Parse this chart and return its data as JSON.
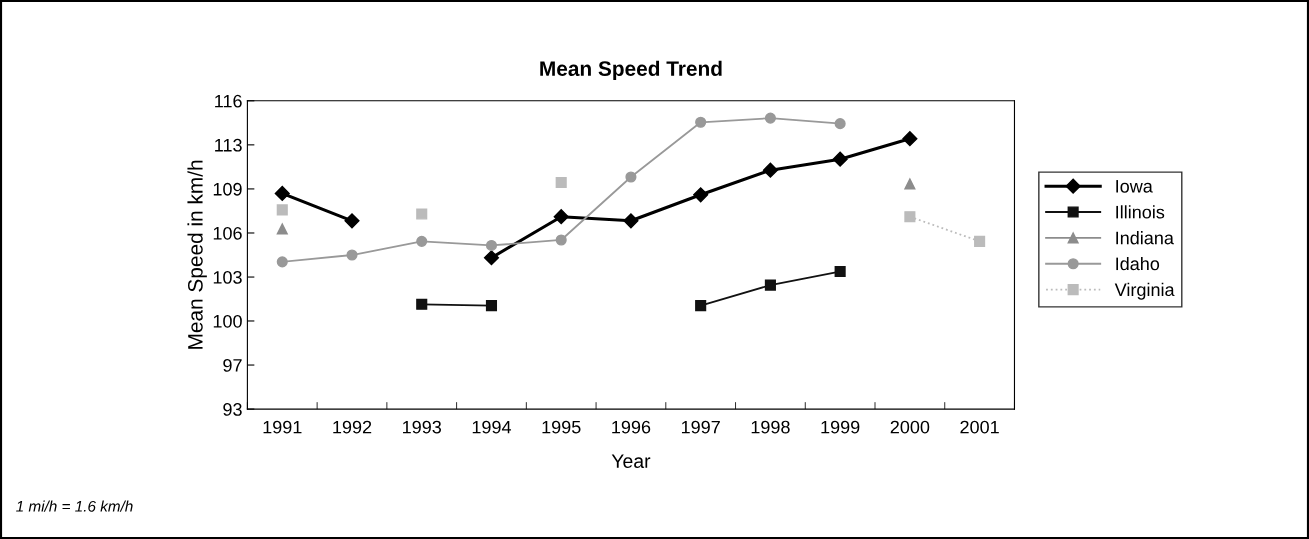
{
  "chart_data": {
    "type": "line",
    "title": "Mean Speed Trend",
    "xlabel": "Year",
    "ylabel": "Mean Speed in km/h",
    "categories": [
      "1991",
      "1992",
      "1993",
      "1994",
      "1995",
      "1996",
      "1997",
      "1998",
      "1999",
      "2000",
      "2001"
    ],
    "series": [
      {
        "name": "Iowa",
        "color": "#000000",
        "marker": "diamond",
        "line_style": "solid",
        "values": [
          109.1,
          107.1,
          null,
          104.4,
          107.4,
          107.1,
          109.0,
          110.8,
          111.6,
          113.1,
          null
        ]
      },
      {
        "name": "Illinois",
        "color": "#111111",
        "marker": "square",
        "line_style": "solid",
        "values": [
          null,
          null,
          101.0,
          100.9,
          null,
          null,
          100.9,
          102.4,
          103.4,
          null,
          null
        ]
      },
      {
        "name": "Indiana",
        "color": "#8c8c8c",
        "marker": "triangle",
        "line_style": "solid",
        "values": [
          106.5,
          null,
          null,
          null,
          null,
          null,
          null,
          null,
          null,
          109.8,
          null
        ]
      },
      {
        "name": "Idaho",
        "color": "#999999",
        "marker": "circle",
        "line_style": "solid",
        "values": [
          104.1,
          104.6,
          105.6,
          105.3,
          105.7,
          110.3,
          114.3,
          114.6,
          114.2,
          null,
          null
        ]
      },
      {
        "name": "Virginia",
        "color": "#bbbbbb",
        "marker": "square",
        "line_style": "dotted",
        "values": [
          107.9,
          null,
          107.6,
          null,
          109.9,
          null,
          null,
          null,
          null,
          107.4,
          105.6
        ]
      }
    ],
    "ylim": [
      93.34,
      115.87
    ],
    "yticks": [
      {
        "value": 93.34,
        "label": "93"
      },
      {
        "value": 96.56,
        "label": "97"
      },
      {
        "value": 99.78,
        "label": "100"
      },
      {
        "value": 102.99,
        "label": "103"
      },
      {
        "value": 106.21,
        "label": "106"
      },
      {
        "value": 109.43,
        "label": "109"
      },
      {
        "value": 112.65,
        "label": "113"
      },
      {
        "value": 115.87,
        "label": "116"
      }
    ],
    "grid": false,
    "legend": "right",
    "annotations": [
      "1 mi/h = 1.6 km/h"
    ]
  }
}
